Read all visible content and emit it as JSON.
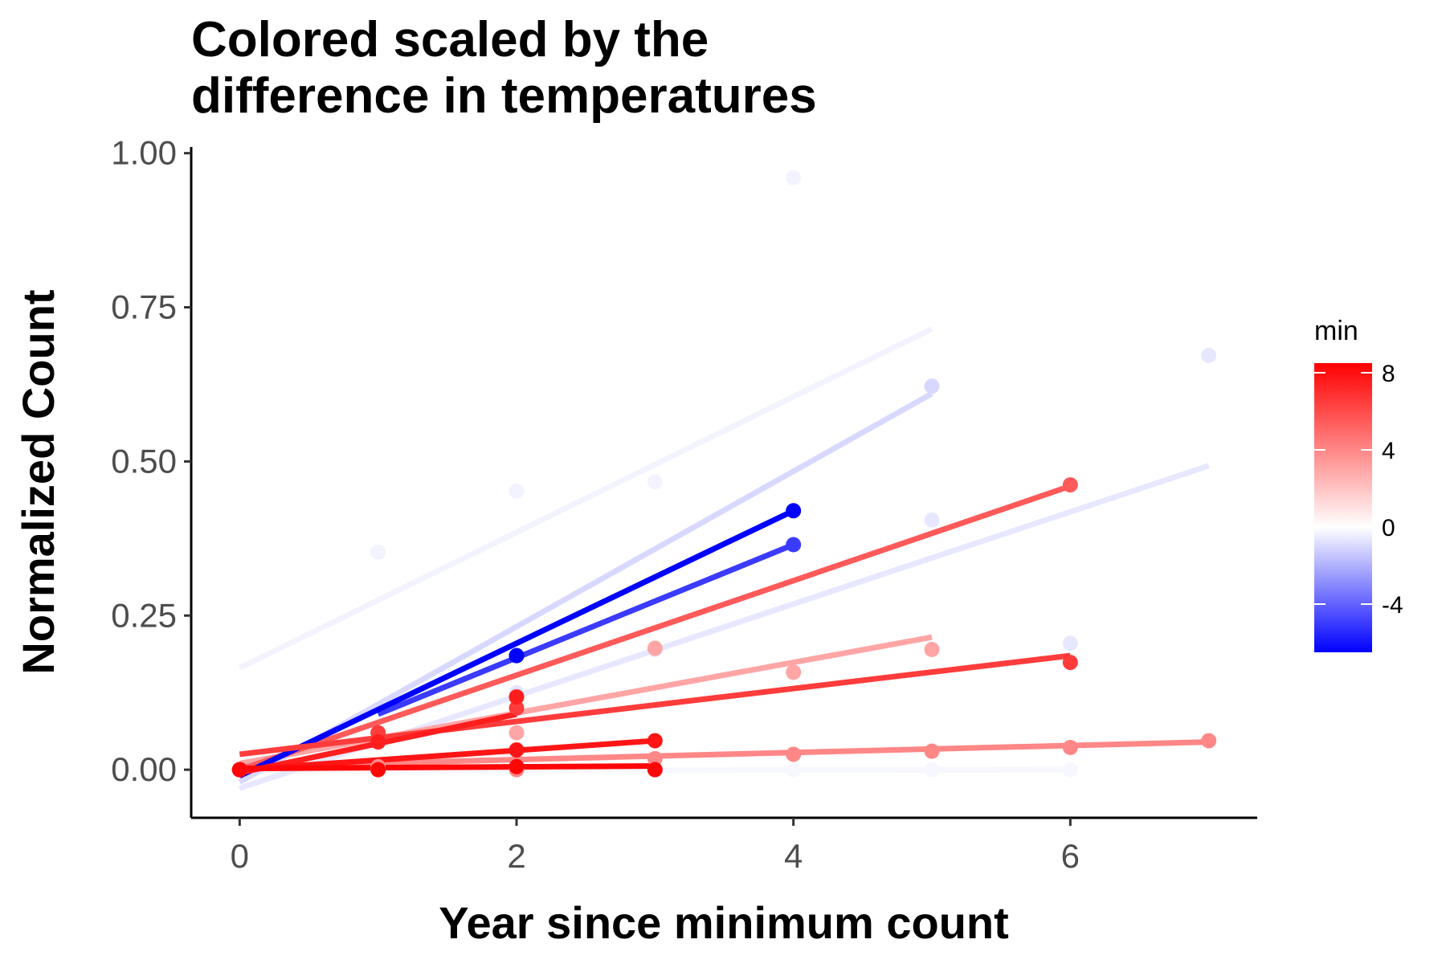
{
  "chart_data": {
    "type": "scatter",
    "title_lines": [
      "Colored scaled by the",
      "difference in temperatures"
    ],
    "xlabel": "Year since minimum count",
    "ylabel": "Normalized Count",
    "xlim": [
      -0.35,
      7.35
    ],
    "ylim": [
      -0.078,
      1.01
    ],
    "x_ticks": [
      0,
      2,
      4,
      6
    ],
    "x_tick_labels": [
      "0",
      "2",
      "4",
      "6"
    ],
    "y_ticks": [
      0,
      0.25,
      0.5,
      0.75,
      1.0
    ],
    "y_tick_labels": [
      "0.00",
      "0.25",
      "0.50",
      "0.75",
      "1.00"
    ],
    "grid": false,
    "legend": {
      "title": "min",
      "position": "right",
      "range": [
        -6.5,
        8.5
      ],
      "ticks": [
        8,
        4,
        0,
        -4
      ],
      "tick_labels": [
        "8",
        "4",
        "0",
        "-4"
      ],
      "colors": {
        "low": "#0000ff",
        "mid": "#ffffff",
        "high": "#ff0000"
      }
    },
    "series": [
      {
        "min": -6.5,
        "points": [
          [
            0,
            0.0
          ],
          [
            2,
            0.185
          ],
          [
            4,
            0.42
          ]
        ],
        "fit": [
          [
            0,
            -0.01
          ],
          [
            4,
            0.42
          ]
        ]
      },
      {
        "min": -5.0,
        "points": [
          [
            0,
            0.0
          ],
          [
            2,
            0.185
          ],
          [
            4,
            0.365
          ]
        ],
        "fit": [
          [
            1,
            0.09
          ],
          [
            4,
            0.365
          ]
        ]
      },
      {
        "min": -1.0,
        "points": [
          [
            0,
            0.0
          ],
          [
            2,
            0.12
          ],
          [
            5,
            0.622
          ]
        ],
        "fit": [
          [
            0,
            -0.02
          ],
          [
            5,
            0.61
          ]
        ]
      },
      {
        "min": -0.3,
        "points": [
          [
            0,
            0.0
          ],
          [
            1,
            0.353
          ],
          [
            2,
            0.452
          ],
          [
            3,
            0.467
          ],
          [
            4,
            0.96
          ]
        ],
        "fit": [
          [
            0,
            0.165
          ],
          [
            5,
            0.715
          ]
        ]
      },
      {
        "min": -0.6,
        "points": [
          [
            0,
            0.0
          ],
          [
            2,
            0.125
          ],
          [
            3,
            0.195
          ],
          [
            5,
            0.405
          ],
          [
            6,
            0.205
          ],
          [
            7,
            0.672
          ]
        ],
        "fit": [
          [
            0,
            -0.03
          ],
          [
            7,
            0.493
          ]
        ]
      },
      {
        "min": -0.2,
        "points": [
          [
            0,
            0.0
          ],
          [
            1,
            0.0
          ],
          [
            2,
            0.0
          ],
          [
            3,
            0.0
          ],
          [
            4,
            0.0
          ],
          [
            5,
            0.0
          ],
          [
            6,
            0.0
          ]
        ],
        "fit": [
          [
            0,
            -0.002
          ],
          [
            6,
            0.0
          ]
        ]
      },
      {
        "min": 5.5,
        "points": [
          [
            0,
            0.0
          ],
          [
            6,
            0.462
          ]
        ],
        "fit": [
          [
            0,
            0.0
          ],
          [
            6,
            0.46
          ]
        ]
      },
      {
        "min": 6.5,
        "points": [
          [
            0,
            0.0
          ],
          [
            1,
            0.06
          ],
          [
            2,
            0.1
          ],
          [
            6,
            0.174
          ]
        ],
        "fit": [
          [
            0,
            0.025
          ],
          [
            6,
            0.185
          ]
        ]
      },
      {
        "min": 3.0,
        "points": [
          [
            0,
            0.0
          ],
          [
            1,
            0.0
          ],
          [
            2,
            0.06
          ],
          [
            3,
            0.197
          ],
          [
            4,
            0.158
          ],
          [
            5,
            0.195
          ]
        ],
        "fit": [
          [
            0,
            0.01
          ],
          [
            5,
            0.215
          ]
        ]
      },
      {
        "min": 4.0,
        "points": [
          [
            0,
            0.0
          ],
          [
            1,
            0.005
          ],
          [
            2,
            0.0
          ],
          [
            3,
            0.018
          ],
          [
            4,
            0.025
          ],
          [
            5,
            0.03
          ],
          [
            6,
            0.036
          ],
          [
            7,
            0.047
          ]
        ],
        "fit": [
          [
            0,
            0.005
          ],
          [
            7,
            0.045
          ]
        ]
      },
      {
        "min": 7.5,
        "points": [
          [
            0,
            0.0
          ],
          [
            1,
            0.045
          ],
          [
            2,
            0.118
          ]
        ],
        "fit": [
          [
            0,
            -0.005
          ],
          [
            2,
            0.09
          ]
        ]
      },
      {
        "min": 7.8,
        "points": [
          [
            0,
            0.0
          ],
          [
            2,
            0.032
          ],
          [
            3,
            0.047
          ]
        ],
        "fit": [
          [
            0,
            0.0
          ],
          [
            3,
            0.047
          ]
        ]
      },
      {
        "min": 8.3,
        "points": [
          [
            0,
            0.0
          ],
          [
            1,
            0.0
          ],
          [
            2,
            0.005
          ],
          [
            3,
            0.0
          ]
        ],
        "fit": [
          [
            0,
            0.002
          ],
          [
            3,
            0.006
          ]
        ]
      }
    ]
  }
}
